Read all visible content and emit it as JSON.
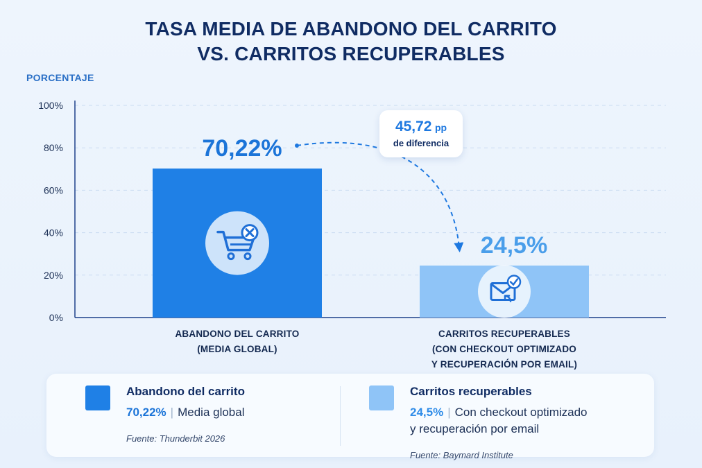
{
  "chart_data": {
    "type": "bar",
    "title_line1": "TASA MEDIA DE ABANDONO DEL CARRITO",
    "title_line2": "VS. CARRITOS RECUPERABLES",
    "ylabel": "PORCENTAJE",
    "ylim": [
      0,
      100
    ],
    "yticks": [
      "0%",
      "20%",
      "40%",
      "60%",
      "80%",
      "100%"
    ],
    "ytick_values": [
      0,
      20,
      40,
      60,
      80,
      100
    ],
    "grid": true,
    "categories": [
      [
        "ABANDONO DEL CARRITO",
        "(MEDIA GLOBAL)"
      ],
      [
        "CARRITOS RECUPERABLES",
        "(CON CHECKOUT OPTIMIZADO",
        "Y RECUPERACIÓN POR EMAIL)"
      ]
    ],
    "values": [
      70.22,
      24.5
    ],
    "value_labels": [
      "70,22%",
      "24,5%"
    ],
    "colors": [
      "#1f80e6",
      "#8fc4f7"
    ],
    "value_label_colors": [
      "#1b74d8",
      "#4a9eea"
    ],
    "icons": [
      "cart-remove-icon",
      "email-check-icon"
    ],
    "annotation": {
      "value": "45,72",
      "unit": "pp",
      "text": "de diferencia"
    }
  },
  "legend": [
    {
      "title": "Abandono del carrito",
      "value": "70,22%",
      "desc_lines": [
        "Media global"
      ],
      "source": "Fuente: Thunderbit 2026",
      "color": "#1f80e6",
      "value_color": "#1b74d8"
    },
    {
      "title": "Carritos recuperables",
      "value": "24,5%",
      "desc_lines": [
        "Con checkout optimizado",
        "y recuperación por email"
      ],
      "source": "Fuente: Baymard Institute",
      "color": "#8fc4f7",
      "value_color": "#2f8ce8"
    }
  ]
}
